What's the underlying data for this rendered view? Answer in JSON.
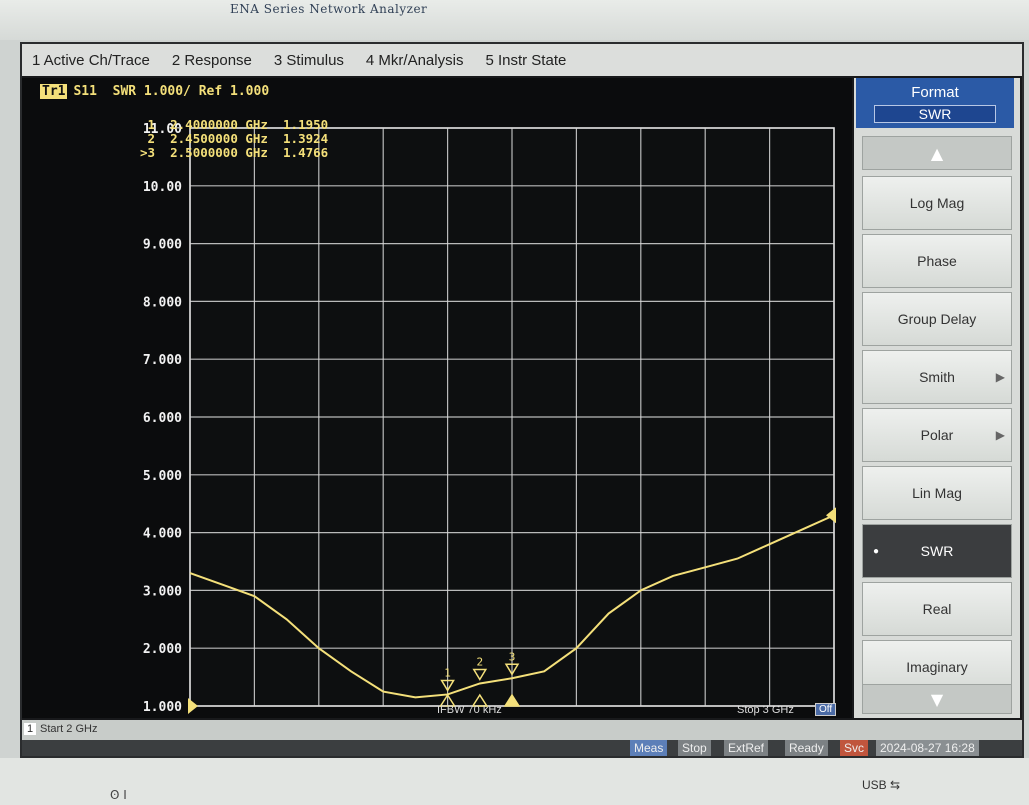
{
  "instrument": {
    "brand": "ENA  Series   Network Analyzer"
  },
  "menu": [
    {
      "label": "1 Active Ch/Trace"
    },
    {
      "label": "2 Response"
    },
    {
      "label": "3 Stimulus"
    },
    {
      "label": "4 Mkr/Analysis"
    },
    {
      "label": "5 Instr State"
    }
  ],
  "trace": {
    "tag": "Tr1",
    "header": "S11  SWR 1.000/ Ref 1.000"
  },
  "markers": [
    {
      "id": "1",
      "prefix": " ",
      "freq": "2.4000000 GHz",
      "value": "1.1950"
    },
    {
      "id": "2",
      "prefix": " ",
      "freq": "2.4500000 GHz",
      "value": "1.3924"
    },
    {
      "id": "3",
      "prefix": ">",
      "freq": "2.5000000 GHz",
      "value": "1.4766"
    }
  ],
  "chart_data": {
    "type": "line",
    "y_tick_labels": [
      "11.00",
      "10.00",
      "9.000",
      "8.000",
      "7.000",
      "6.000",
      "5.000",
      "4.000",
      "3.000",
      "2.000",
      "1.000"
    ],
    "ylim": [
      1,
      11
    ],
    "xlim": [
      2.0,
      3.0
    ],
    "x_units": "GHz",
    "grid": true,
    "series": [
      {
        "color": "#f4e07a",
        "x": [
          2.0,
          2.05,
          2.1,
          2.15,
          2.2,
          2.25,
          2.3,
          2.35,
          2.4,
          2.45,
          2.5,
          2.55,
          2.6,
          2.65,
          2.7,
          2.75,
          2.8,
          2.85,
          2.9,
          2.95,
          3.0
        ],
        "y": [
          3.3,
          3.1,
          2.9,
          2.5,
          2.0,
          1.6,
          1.25,
          1.15,
          1.2,
          1.39,
          1.48,
          1.6,
          2.0,
          2.6,
          3.0,
          3.25,
          3.4,
          3.55,
          3.8,
          4.05,
          4.3
        ]
      }
    ],
    "marker_x": [
      2.4,
      2.45,
      2.5
    ]
  },
  "status": {
    "channel": "1",
    "start": "Start 2 GHz",
    "ifbw": "IFBW 70 kHz",
    "stop": "Stop 3 GHz",
    "off": "Off",
    "meas": "Meas",
    "stop_btn": "Stop",
    "extref": "ExtRef",
    "ready": "Ready",
    "svc": "Svc",
    "datetime": "2024-08-27 16:28"
  },
  "softkeys": {
    "title": "Format",
    "current": "SWR",
    "items": [
      {
        "label": "Log Mag",
        "arrow": ""
      },
      {
        "label": "Phase",
        "arrow": ""
      },
      {
        "label": "Group Delay",
        "arrow": ""
      },
      {
        "label": "Smith",
        "arrow": "▶"
      },
      {
        "label": "Polar",
        "arrow": "▶"
      },
      {
        "label": "Lin Mag",
        "arrow": ""
      },
      {
        "label": "SWR",
        "arrow": ""
      },
      {
        "label": "Real",
        "arrow": ""
      },
      {
        "label": "Imaginary",
        "arrow": ""
      }
    ]
  },
  "bezel": {
    "power": "ʘ  I",
    "usb": "USB"
  }
}
